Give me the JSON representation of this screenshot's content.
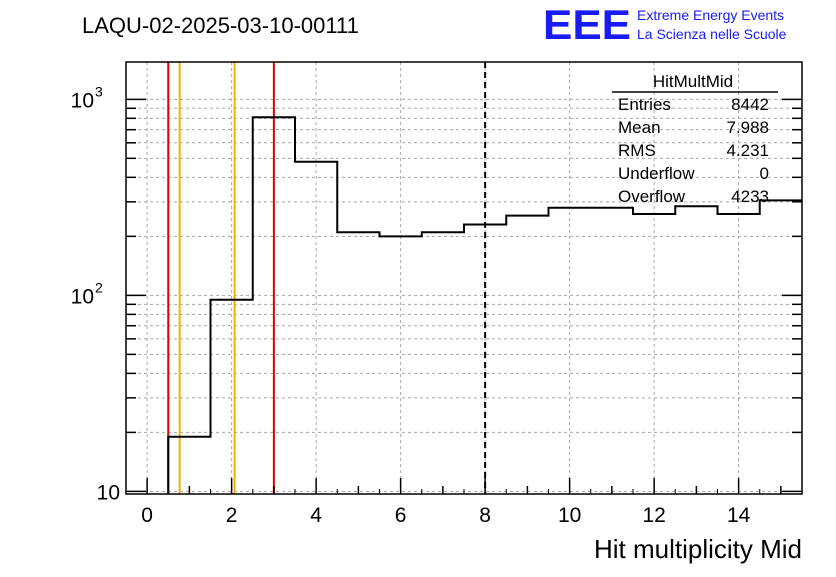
{
  "header": {
    "run_title": "LAQU-02-2025-03-10-00111",
    "logo_text": "EEE",
    "logo_line1": "Extreme Energy Events",
    "logo_line2": "La Scienza nelle Scuole"
  },
  "stats": {
    "title": "HitMultMid",
    "rows": [
      {
        "label": "Entries",
        "value": "8442"
      },
      {
        "label": "Mean",
        "value": "7.988"
      },
      {
        "label": "RMS",
        "value": "4.231"
      },
      {
        "label": "Underflow",
        "value": "0"
      },
      {
        "label": "Overflow",
        "value": "4233"
      }
    ]
  },
  "chart_data": {
    "type": "histogram",
    "title": "LAQU-02-2025-03-10-00111",
    "xlabel": "Hit multiplicity Mid",
    "ylabel": "",
    "xlim": [
      -0.5,
      15.5
    ],
    "ylim": [
      9.7,
      1550
    ],
    "yscale": "log",
    "grid": true,
    "x_ticks": [
      0,
      2,
      4,
      6,
      8,
      10,
      12,
      14
    ],
    "x_tick_labels": [
      "0",
      "2",
      "4",
      "6",
      "8",
      "10",
      "12",
      "14"
    ],
    "y_tick_labels": [
      {
        "value": 10,
        "base": "10",
        "exp": ""
      },
      {
        "value": 100,
        "base": "10",
        "exp": "2"
      },
      {
        "value": 1000,
        "base": "10",
        "exp": "3"
      }
    ],
    "bin_edges": [
      0.5,
      1.5,
      2.5,
      3.5,
      4.5,
      5.5,
      6.5,
      7.5,
      8.5,
      9.5,
      10.5,
      11.5,
      12.5,
      13.5,
      14.5,
      15.5
    ],
    "counts": [
      19,
      95,
      810,
      480,
      210,
      200,
      210,
      230,
      255,
      280,
      280,
      260,
      285,
      260,
      305
    ],
    "vertical_lines": [
      {
        "x": 0.5,
        "color": "#dd0000",
        "style": "solid"
      },
      {
        "x": 0.77,
        "color": "#f0b400",
        "style": "solid"
      },
      {
        "x": 2.07,
        "color": "#f0b400",
        "style": "solid"
      },
      {
        "x": 3.0,
        "color": "#dd0000",
        "style": "solid"
      },
      {
        "x": 8.0,
        "color": "#000000",
        "style": "dashed"
      }
    ]
  }
}
